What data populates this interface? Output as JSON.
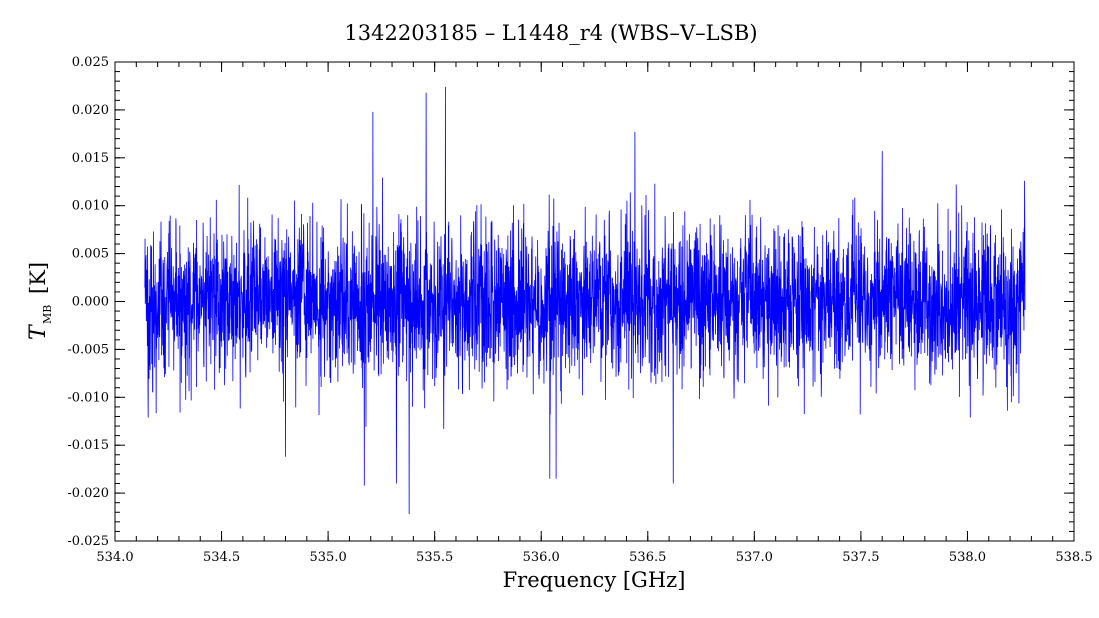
{
  "chart_data": {
    "type": "line",
    "title": "1342203185 – L1448_r4 (WBS–V–LSB)",
    "xlabel": "Frequency [GHz]",
    "ylabel": "T",
    "ylabel_sub": "MB",
    "ylabel_unit": "[K]",
    "xlim": [
      534.0,
      538.5
    ],
    "ylim": [
      -0.025,
      0.025
    ],
    "x_ticks": [
      "534.0",
      "534.5",
      "535.0",
      "535.5",
      "536.0",
      "536.5",
      "537.0",
      "537.5",
      "538.0",
      "538.5"
    ],
    "y_ticks": [
      "0.025",
      "0.020",
      "0.015",
      "0.010",
      "0.005",
      "0.000",
      "-0.005",
      "-0.010",
      "-0.015",
      "-0.020",
      "-0.025"
    ],
    "x_range_data": [
      534.14,
      538.27
    ],
    "noise_rms": 0.004,
    "series": [
      {
        "color": "#0000ff",
        "features": [
          {
            "x": 535.21,
            "y": 0.0198
          },
          {
            "x": 535.38,
            "y": -0.0222
          },
          {
            "x": 535.46,
            "y": 0.0218
          },
          {
            "x": 535.55,
            "y": 0.0224
          },
          {
            "x": 536.04,
            "y": -0.0185
          },
          {
            "x": 536.07,
            "y": -0.0185
          },
          {
            "x": 536.44,
            "y": 0.0177
          },
          {
            "x": 536.62,
            "y": -0.019
          },
          {
            "x": 534.8,
            "y": -0.0162
          },
          {
            "x": 537.6,
            "y": 0.0157
          },
          {
            "x": 535.32,
            "y": -0.019
          },
          {
            "x": 535.17,
            "y": -0.0192
          }
        ]
      }
    ],
    "grid": false
  },
  "colors": {
    "line": "#0000ff",
    "frame": "#000000",
    "background": "#ffffff"
  }
}
